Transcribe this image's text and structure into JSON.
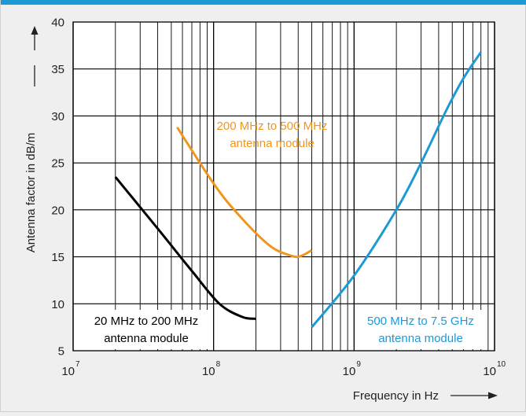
{
  "chart_data": {
    "type": "line",
    "xscale": "log",
    "xlim": [
      10000000,
      10000000000
    ],
    "ylim": [
      5,
      40
    ],
    "xlabel": "Frequency in Hz",
    "ylabel": "Antenna factor in dB/m",
    "x_ticks": [
      {
        "value": 10000000,
        "base": "10",
        "exp": "7"
      },
      {
        "value": 100000000,
        "base": "10",
        "exp": "8"
      },
      {
        "value": 1000000000,
        "base": "10",
        "exp": "9"
      },
      {
        "value": 10000000000,
        "base": "10",
        "exp": "10"
      }
    ],
    "y_ticks": [
      5,
      10,
      15,
      20,
      25,
      30,
      35,
      40
    ],
    "grid": true,
    "series": [
      {
        "name": "20 MHz to 200 MHz antenna module",
        "label_lines": [
          "20 MHz to 200 MHz",
          "antenna module"
        ],
        "color": "#000000",
        "x": [
          20000000,
          40000000,
          70000000,
          110000000,
          160000000,
          200000000
        ],
        "y": [
          23.5,
          18.0,
          13.5,
          10.0,
          8.6,
          8.4
        ]
      },
      {
        "name": "200 MHz to 500 MHz antenna module",
        "label_lines": [
          "200 MHz to 500 MHz",
          "antenna module"
        ],
        "color": "#f0961e",
        "x": [
          55000000,
          100000000,
          150000000,
          250000000,
          360000000,
          420000000,
          500000000
        ],
        "y": [
          28.8,
          22.8,
          19.5,
          16.2,
          15.1,
          15.1,
          15.7
        ]
      },
      {
        "name": "500 MHz to 7.5 GHz antenna module",
        "label_lines": [
          "500 MHz to 7.5 GHz",
          "antenna module"
        ],
        "color": "#1d9ad6",
        "x": [
          500000000,
          1000000000,
          2000000000,
          3000000000,
          4500000000,
          6000000000,
          8000000000
        ],
        "y": [
          7.5,
          13.0,
          20.0,
          25.0,
          30.5,
          34.0,
          36.8
        ]
      }
    ]
  }
}
